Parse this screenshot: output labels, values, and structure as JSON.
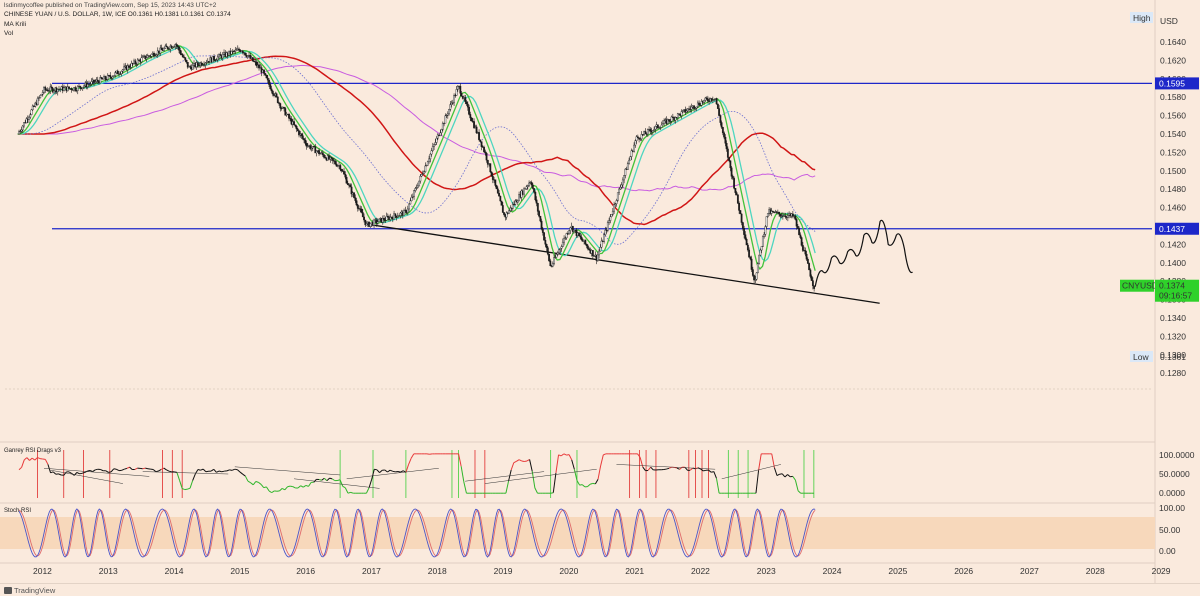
{
  "header": {
    "publisher_line": "CHINESE YUAN / U.S. DOLLAR, 1W, ICE  O0.1361 H0.1381 L0.1361 C0.1374",
    "published_by": "lsdinmycoffee published on TradingView.com, Sep 15, 2023 14:43 UTC+2",
    "indicator_ma": "MA Krili",
    "indicator_vol": "Vol"
  },
  "price_axis": {
    "currency": "USD",
    "high_label": "High",
    "low_label": "Low",
    "ticks": [
      "0.1640",
      "0.1620",
      "0.1600",
      "0.1580",
      "0.1560",
      "0.1540",
      "0.1520",
      "0.1500",
      "0.1480",
      "0.1460",
      "0.1440",
      "0.1420",
      "0.1400",
      "0.1380",
      "0.1360",
      "0.1340",
      "0.1320",
      "0.1300",
      "0.1280"
    ],
    "level_upper": "0.1595",
    "level_lower": "0.1437",
    "ticker_label": "CNYUSD",
    "last_price": "0.1374",
    "countdown": "09:16:57",
    "low_value": "0.1361"
  },
  "rsi_panel": {
    "title": "Ganrey RSI Drags v3",
    "ticks": [
      "100.0000",
      "50.0000",
      "0.0000"
    ]
  },
  "stoch_panel": {
    "title": "Stoch RSI",
    "ticks": [
      "100.00",
      "50.00",
      "0.00"
    ]
  },
  "time_axis": {
    "years": [
      "2012",
      "2013",
      "2014",
      "2015",
      "2016",
      "2017",
      "2018",
      "2019",
      "2020",
      "2021",
      "2022",
      "2023",
      "2024",
      "2025",
      "2026",
      "2027",
      "2028",
      "2029"
    ]
  },
  "footer": {
    "brand": "TradingView"
  },
  "chart_data": {
    "type": "line",
    "title": "CHINESE YUAN / U.S. DOLLAR, 1W, ICE",
    "ylabel": "USD",
    "ylim": [
      0.128,
      0.165
    ],
    "x": [
      "2011.6",
      "2012.0",
      "2012.5",
      "2013.0",
      "2013.5",
      "2014.0",
      "2014.2",
      "2014.5",
      "2015.0",
      "2015.3",
      "2015.6",
      "2016.0",
      "2016.5",
      "2016.9",
      "2017.5",
      "2018.0",
      "2018.3",
      "2018.7",
      "2019.0",
      "2019.4",
      "2019.7",
      "2020.0",
      "2020.4",
      "2020.7",
      "2021.0",
      "2021.5",
      "2022.0",
      "2022.2",
      "2022.5",
      "2022.8",
      "2023.0",
      "2023.4",
      "2023.7"
    ],
    "series": [
      {
        "values": [
          0.154,
          0.1588,
          0.159,
          0.1602,
          0.1622,
          0.1638,
          0.1612,
          0.162,
          0.1632,
          0.161,
          0.157,
          0.1528,
          0.1505,
          0.1441,
          0.1455,
          0.154,
          0.1592,
          0.152,
          0.145,
          0.149,
          0.1395,
          0.144,
          0.1405,
          0.147,
          0.1535,
          0.1555,
          0.1575,
          0.158,
          0.148,
          0.138,
          0.1455,
          0.145,
          0.1374
        ]
      }
    ],
    "levels": [
      0.1595,
      0.1437
    ],
    "projection_2024_2025": [
      0.1374,
      0.139,
      0.1405,
      0.14,
      0.1412,
      0.1408,
      0.143,
      0.1422,
      0.1445,
      0.142,
      0.143,
      0.1415,
      0.139
    ],
    "trendline": {
      "from": [
        "2017.0",
        0.1441
      ],
      "to": [
        "2024.7",
        0.1356
      ]
    },
    "grid": false
  }
}
